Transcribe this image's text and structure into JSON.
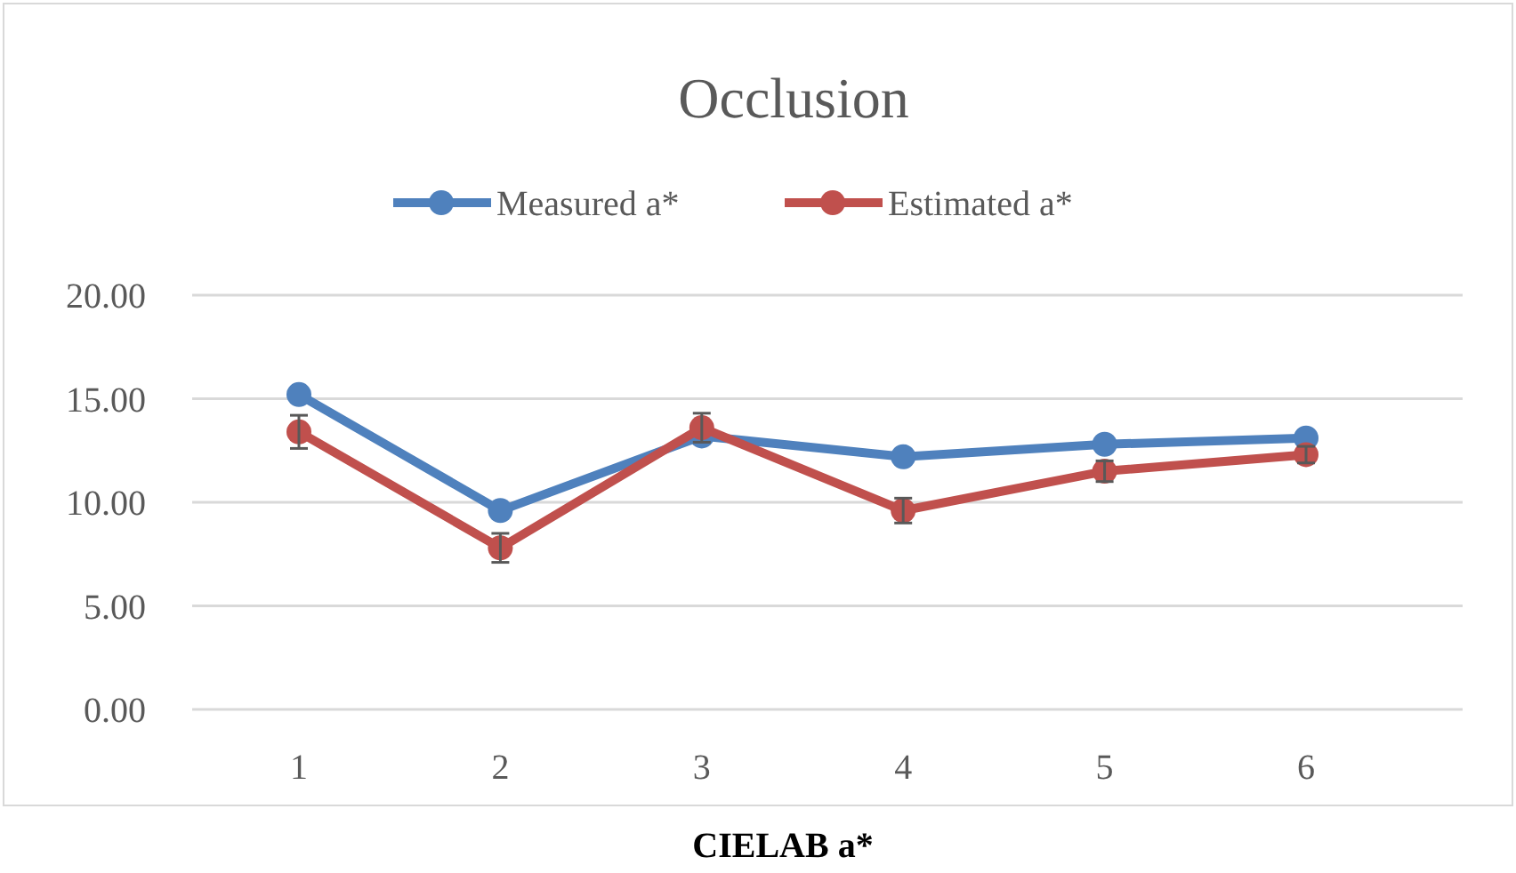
{
  "chart_data": {
    "type": "line",
    "title": "Occlusion",
    "xlabel": "CIELAB a*",
    "categories": [
      "1",
      "2",
      "3",
      "4",
      "5",
      "6"
    ],
    "series": [
      {
        "name": "Measured a*",
        "color": "#4f81bd",
        "values": [
          15.2,
          9.6,
          13.2,
          12.2,
          12.8,
          13.1
        ]
      },
      {
        "name": "Estimated a*",
        "color": "#c0504d",
        "values": [
          13.4,
          7.8,
          13.6,
          9.6,
          11.5,
          12.3
        ],
        "errors": [
          0.8,
          0.7,
          0.7,
          0.6,
          0.5,
          0.4
        ]
      }
    ],
    "ylim": [
      0,
      20
    ],
    "yticks": [
      {
        "value": 0,
        "label": "0.00"
      },
      {
        "value": 5,
        "label": "5.00"
      },
      {
        "value": 10,
        "label": "10.00"
      },
      {
        "value": 15,
        "label": "15.00"
      },
      {
        "value": 20,
        "label": "20.00"
      }
    ],
    "grid": "y",
    "legend": "top",
    "marker": "circle",
    "line_style": "solid"
  }
}
